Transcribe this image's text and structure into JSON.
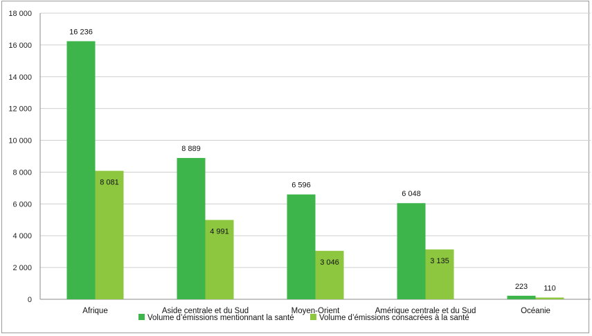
{
  "chart_data": {
    "type": "bar",
    "categories": [
      "Afrique",
      "Aside centrale et du Sud",
      "Moyen-Orient",
      "Amérique centrale et du Sud",
      "Océanie"
    ],
    "series": [
      {
        "name": "Volume d’émissions mentionnant la santé",
        "color": "#3db54a",
        "values": [
          16236,
          8889,
          6596,
          6048,
          223
        ],
        "labels": [
          "16 236",
          "8 889",
          "6 596",
          "6 048",
          "223"
        ]
      },
      {
        "name": "Volume d’émissions consacrées à la santé",
        "color": "#8dc63f",
        "values": [
          8081,
          4991,
          3046,
          3135,
          110
        ],
        "labels": [
          "8 081",
          "4 991",
          "3 046",
          "3 135",
          "110"
        ]
      }
    ],
    "ylim": [
      0,
      18000
    ],
    "yticks": [
      0,
      2000,
      4000,
      6000,
      8000,
      10000,
      12000,
      14000,
      16000,
      18000
    ],
    "ytick_labels": [
      "0",
      "2 000",
      "4 000",
      "6 000",
      "8 000",
      "10 000",
      "12 000",
      "14 000",
      "16 000",
      "18 000"
    ],
    "grid": true,
    "legend_position": "bottom",
    "title": "",
    "xlabel": "",
    "ylabel": ""
  }
}
